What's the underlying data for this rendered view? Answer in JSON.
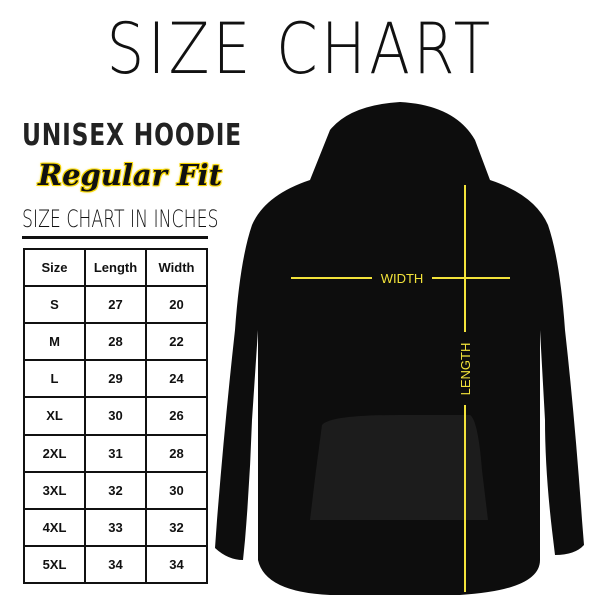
{
  "title": "SIZE CHART",
  "product": "UNISEX HOODIE",
  "fit": "Regular Fit",
  "chart_caption": "SIZE CHART IN INCHES",
  "table": {
    "headers": [
      "Size",
      "Length",
      "Width"
    ],
    "rows": [
      [
        "S",
        "27",
        "20"
      ],
      [
        "M",
        "28",
        "22"
      ],
      [
        "L",
        "29",
        "24"
      ],
      [
        "XL",
        "30",
        "26"
      ],
      [
        "2XL",
        "31",
        "28"
      ],
      [
        "3XL",
        "32",
        "30"
      ],
      [
        "4XL",
        "33",
        "32"
      ],
      [
        "5XL",
        "34",
        "34"
      ]
    ]
  },
  "diagram": {
    "width_label": "WIDTH",
    "length_label": "LENGTH",
    "line_color": "#f2e23a",
    "garment_color": "#0d0d0d"
  }
}
